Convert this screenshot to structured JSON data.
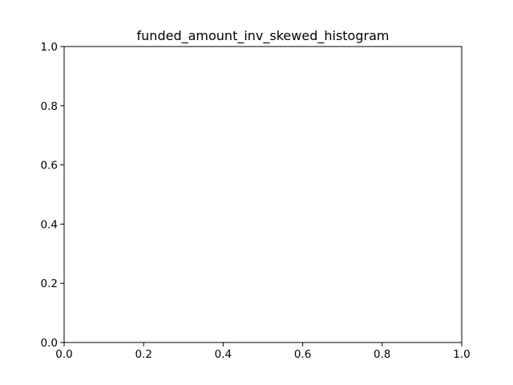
{
  "chart_data": {
    "type": "bar",
    "title": "funded_amount_inv_skewed_histogram",
    "xlabel": "",
    "ylabel": "",
    "xlim": [
      0,
      1
    ],
    "ylim": [
      0,
      1
    ],
    "x_ticks": [
      "0.0",
      "0.2",
      "0.4",
      "0.6",
      "0.8",
      "1.0"
    ],
    "y_ticks": [
      "0.0",
      "0.2",
      "0.4",
      "0.6",
      "0.8",
      "1.0"
    ],
    "categories": [],
    "values": [],
    "grid": false,
    "legend": "none",
    "colors": {
      "axes": "#000000",
      "background": "#ffffff"
    }
  }
}
